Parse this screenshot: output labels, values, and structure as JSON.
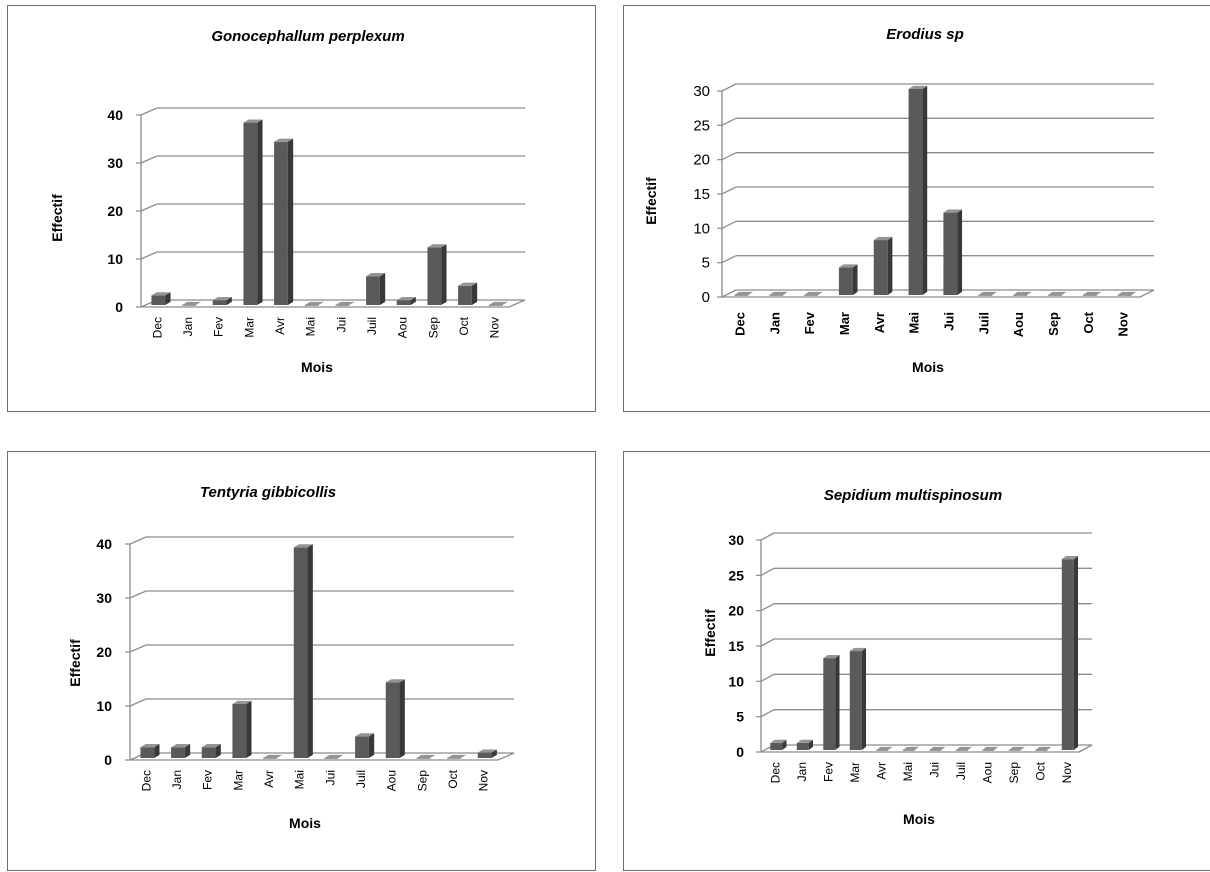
{
  "chart_data": [
    {
      "type": "bar",
      "title": "Gonocephallum perplexum",
      "xlabel": "Mois",
      "ylabel": "Effectif",
      "categories": [
        "Dec",
        "Jan",
        "Fev",
        "Mar",
        "Avr",
        "Mai",
        "Jui",
        "Juil",
        "Aou",
        "Sep",
        "Oct",
        "Nov"
      ],
      "values": [
        2,
        0,
        1,
        38,
        34,
        0,
        0,
        6,
        1,
        12,
        4,
        0
      ],
      "ylim": [
        0,
        40
      ],
      "yticks": [
        0,
        10,
        20,
        30,
        40
      ],
      "grid": true,
      "legend": "none",
      "bar_color": "#5a5a5a"
    },
    {
      "type": "bar",
      "title": "Erodius sp",
      "xlabel": "Mois",
      "ylabel": "Effectif",
      "categories": [
        "Dec",
        "Jan",
        "Fev",
        "Mar",
        "Avr",
        "Mai",
        "Jui",
        "Juil",
        "Aou",
        "Sep",
        "Oct",
        "Nov"
      ],
      "values": [
        0,
        0,
        0,
        4,
        8,
        30,
        12,
        0,
        0,
        0,
        0,
        0
      ],
      "ylim": [
        0,
        30
      ],
      "yticks": [
        0,
        5,
        10,
        15,
        20,
        25,
        30
      ],
      "grid": true,
      "legend": "none",
      "bar_color": "#5a5a5a"
    },
    {
      "type": "bar",
      "title": "Tentyria gibbicollis",
      "xlabel": "Mois",
      "ylabel": "Effectif",
      "categories": [
        "Dec",
        "Jan",
        "Fev",
        "Mar",
        "Avr",
        "Mai",
        "Jui",
        "Juil",
        "Aou",
        "Sep",
        "Oct",
        "Nov"
      ],
      "values": [
        2,
        2,
        2,
        10,
        0,
        39,
        0,
        4,
        14,
        0,
        0,
        1
      ],
      "ylim": [
        0,
        40
      ],
      "yticks": [
        0,
        10,
        20,
        30,
        40
      ],
      "grid": true,
      "legend": "none",
      "bar_color": "#5a5a5a"
    },
    {
      "type": "bar",
      "title": "Sepidium multispinosum",
      "xlabel": "Mois",
      "ylabel": "Effectif",
      "categories": [
        "Dec",
        "Jan",
        "Fev",
        "Mar",
        "Avr",
        "Mai",
        "Jui",
        "Juil",
        "Aou",
        "Sep",
        "Oct",
        "Nov"
      ],
      "values": [
        1,
        1,
        13,
        14,
        0,
        0,
        0,
        0,
        0,
        0,
        0,
        27
      ],
      "ylim": [
        0,
        30
      ],
      "yticks": [
        0,
        5,
        10,
        15,
        20,
        25,
        30
      ],
      "grid": true,
      "legend": "none",
      "bar_color": "#5a5a5a"
    }
  ]
}
